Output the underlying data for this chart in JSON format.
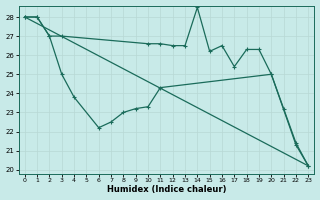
{
  "xlabel": "Humidex (Indice chaleur)",
  "bg_color": "#c8eae8",
  "grid_color": "#b8d8d5",
  "line_color": "#1a6b5a",
  "xlim": [
    -0.5,
    23.5
  ],
  "ylim": [
    19.8,
    28.6
  ],
  "yticks": [
    20,
    21,
    22,
    23,
    24,
    25,
    26,
    27,
    28
  ],
  "xticks": [
    0,
    1,
    2,
    3,
    4,
    5,
    6,
    7,
    8,
    9,
    10,
    11,
    12,
    13,
    14,
    15,
    16,
    17,
    18,
    19,
    20,
    21,
    22,
    23
  ],
  "series1": {
    "x": [
      0,
      1,
      2,
      3,
      10,
      11,
      12,
      13,
      14,
      15,
      16,
      17,
      18,
      19,
      20,
      22,
      23
    ],
    "y": [
      28,
      28,
      27,
      27,
      26.6,
      26.6,
      26.5,
      26.5,
      28.5,
      26.2,
      26.5,
      25.4,
      26.3,
      26.3,
      25.0,
      21.3,
      20.2
    ]
  },
  "series2": {
    "x": [
      0,
      1,
      2,
      3,
      4,
      6,
      7,
      8,
      9,
      10,
      11,
      20,
      21,
      22,
      23
    ],
    "y": [
      28,
      28,
      27,
      25,
      23.8,
      22.2,
      22.5,
      23.0,
      23.2,
      23.3,
      24.3,
      25.0,
      23.2,
      21.4,
      20.2
    ]
  },
  "series3": {
    "x": [
      0,
      23
    ],
    "y": [
      28,
      20.2
    ]
  }
}
